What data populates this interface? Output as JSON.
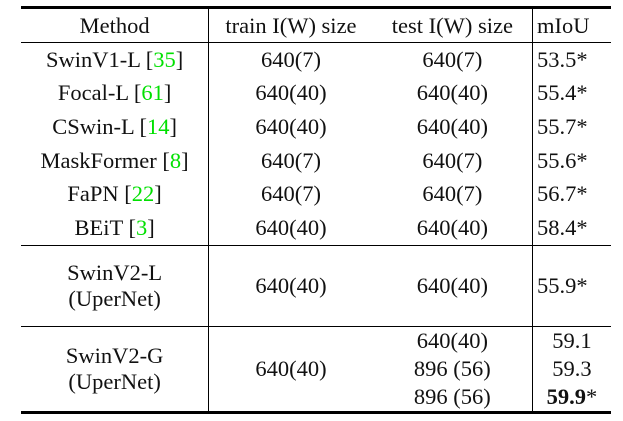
{
  "headers": [
    "Method",
    "train I(W) size",
    "test I(W) size",
    "mIoU"
  ],
  "rows": [
    {
      "method": "SwinV1-L",
      "cite": "35",
      "train": "640(7)",
      "test": "640(7)",
      "miou": "53.5*"
    },
    {
      "method": "Focal-L",
      "cite": "61",
      "train": "640(40)",
      "test": "640(40)",
      "miou": "55.4*"
    },
    {
      "method": "CSwin-L",
      "cite": "14",
      "train": "640(40)",
      "test": "640(40)",
      "miou": "55.7*"
    },
    {
      "method": "MaskFormer",
      "cite": "8",
      "train": "640(7)",
      "test": "640(7)",
      "miou": "55.6*"
    },
    {
      "method": "FaPN",
      "cite": "22",
      "train": "640(7)",
      "test": "640(7)",
      "miou": "56.7*"
    },
    {
      "method": "BEiT",
      "cite": "3",
      "train": "640(40)",
      "test": "640(40)",
      "miou": "58.4*"
    }
  ],
  "swinv2_l": {
    "method": "SwinV2-L",
    "sub": "(UperNet)",
    "train": "640(40)",
    "test": "640(40)",
    "miou": "55.9*"
  },
  "swinv2_g": {
    "method": "SwinV2-G",
    "sub": "(UperNet)",
    "train": "640(40)",
    "tests": [
      "640(40)",
      "896 (56)",
      "896 (56)"
    ],
    "mious": [
      "59.1",
      "59.3",
      "59.9"
    ],
    "best_star": "*"
  },
  "colors": {
    "citation": "#00e000"
  }
}
